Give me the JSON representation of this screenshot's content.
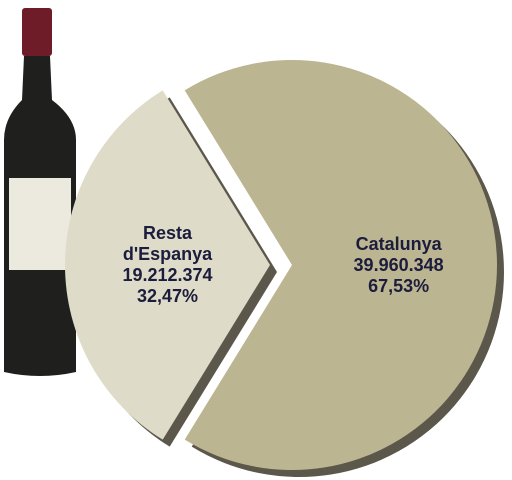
{
  "chart_data": {
    "type": "pie",
    "categories": [
      "Catalunya",
      "Resta d'Espanya"
    ],
    "values": [
      39960348,
      19212374
    ],
    "value_labels": [
      "39.960.348",
      "19.212.374"
    ],
    "percents": [
      67.53,
      32.47
    ],
    "percent_labels": [
      "67,53%",
      "32,47%"
    ],
    "colors": [
      "#bcb592",
      "#dedcc9"
    ],
    "exploded": [
      false,
      true
    ]
  }
}
